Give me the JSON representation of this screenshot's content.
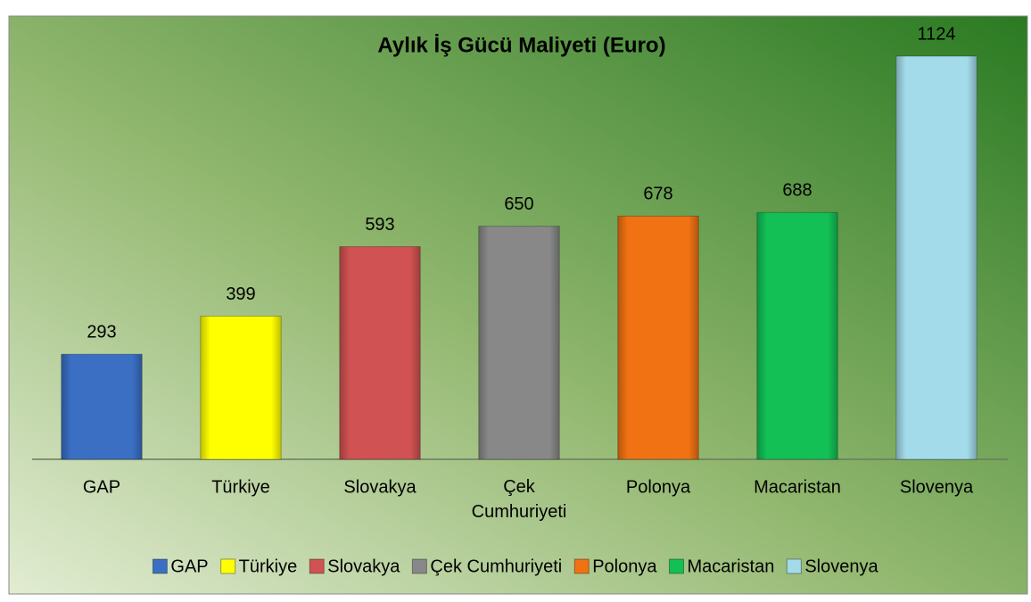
{
  "chart_data": {
    "type": "bar",
    "title": "Aylık İş Gücü Maliyeti (Euro)",
    "categories": [
      "GAP",
      "Türkiye",
      "Slovakya",
      "Çek Cumhuriyeti",
      "Polonya",
      "Macaristan",
      "Slovenya"
    ],
    "values": [
      293,
      399,
      593,
      650,
      678,
      688,
      1124
    ],
    "colors": [
      "#3a6fc4",
      "#ffff00",
      "#d05252",
      "#888888",
      "#f07212",
      "#12c055",
      "#a3dbea"
    ],
    "legend": "bottom"
  }
}
